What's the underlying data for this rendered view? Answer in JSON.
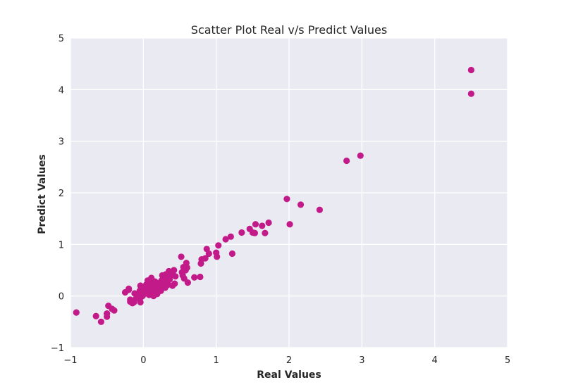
{
  "chart_data": {
    "type": "scatter",
    "title": "Scatter Plot Real v/s Predict Values",
    "xlabel": "Real Values",
    "ylabel": "Predict Values",
    "xlim": [
      -1,
      5
    ],
    "ylim": [
      -1,
      5
    ],
    "xticks": [
      -1,
      0,
      1,
      2,
      3,
      4,
      5
    ],
    "yticks": [
      -1,
      0,
      1,
      2,
      3,
      4,
      5
    ],
    "xtick_labels": [
      "−1",
      "0",
      "1",
      "2",
      "3",
      "4",
      "5"
    ],
    "ytick_labels": [
      "−1",
      "0",
      "1",
      "2",
      "3",
      "4",
      "5"
    ],
    "grid": true,
    "background_color": "#EAEAF2",
    "grid_color": "#ffffff",
    "marker_color": "#C31A8A",
    "points": [
      [
        -0.92,
        -0.32
      ],
      [
        -0.65,
        -0.39
      ],
      [
        -0.58,
        -0.5
      ],
      [
        -0.5,
        -0.4
      ],
      [
        -0.5,
        -0.34
      ],
      [
        -0.48,
        -0.19
      ],
      [
        -0.43,
        -0.25
      ],
      [
        -0.4,
        -0.28
      ],
      [
        -0.25,
        0.07
      ],
      [
        -0.2,
        0.12
      ],
      [
        -0.2,
        0.14
      ],
      [
        -0.18,
        -0.07
      ],
      [
        -0.18,
        -0.11
      ],
      [
        -0.15,
        -0.14
      ],
      [
        -0.13,
        -0.12
      ],
      [
        -0.12,
        0.05
      ],
      [
        -0.1,
        -0.05
      ],
      [
        -0.08,
        0.03
      ],
      [
        -0.05,
        0.1
      ],
      [
        -0.04,
        0.2
      ],
      [
        -0.03,
        -0.02
      ],
      [
        -0.02,
        0.16
      ],
      [
        -0.01,
        0.0
      ],
      [
        -0.04,
        -0.12
      ],
      [
        0.0,
        0.08
      ],
      [
        0.02,
        0.18
      ],
      [
        0.03,
        0.05
      ],
      [
        0.04,
        0.22
      ],
      [
        0.05,
        0.12
      ],
      [
        0.06,
        0.3
      ],
      [
        0.07,
        0.1
      ],
      [
        0.08,
        0.02
      ],
      [
        0.09,
        0.25
      ],
      [
        0.1,
        0.18
      ],
      [
        0.1,
        0.06
      ],
      [
        0.11,
        0.35
      ],
      [
        0.12,
        0.14
      ],
      [
        0.13,
        0.2
      ],
      [
        0.14,
        0.0
      ],
      [
        0.15,
        0.08
      ],
      [
        0.16,
        0.28
      ],
      [
        0.17,
        0.15
      ],
      [
        0.18,
        0.22
      ],
      [
        0.19,
        0.04
      ],
      [
        0.2,
        0.12
      ],
      [
        0.22,
        0.18
      ],
      [
        0.23,
        0.26
      ],
      [
        0.24,
        0.1
      ],
      [
        0.25,
        0.3
      ],
      [
        0.26,
        0.4
      ],
      [
        0.27,
        0.2
      ],
      [
        0.28,
        0.34
      ],
      [
        0.29,
        0.24
      ],
      [
        0.3,
        0.16
      ],
      [
        0.31,
        0.42
      ],
      [
        0.32,
        0.28
      ],
      [
        0.33,
        0.36
      ],
      [
        0.34,
        0.22
      ],
      [
        0.35,
        0.48
      ],
      [
        0.36,
        0.32
      ],
      [
        0.38,
        0.4
      ],
      [
        0.4,
        0.44
      ],
      [
        0.4,
        0.2
      ],
      [
        0.42,
        0.5
      ],
      [
        0.43,
        0.24
      ],
      [
        0.44,
        0.38
      ],
      [
        0.52,
        0.76
      ],
      [
        0.53,
        0.46
      ],
      [
        0.54,
        0.4
      ],
      [
        0.55,
        0.56
      ],
      [
        0.56,
        0.34
      ],
      [
        0.58,
        0.5
      ],
      [
        0.59,
        0.64
      ],
      [
        0.6,
        0.55
      ],
      [
        0.61,
        0.26
      ],
      [
        0.7,
        0.36
      ],
      [
        0.78,
        0.37
      ],
      [
        0.79,
        0.63
      ],
      [
        0.8,
        0.71
      ],
      [
        0.85,
        0.73
      ],
      [
        0.87,
        0.91
      ],
      [
        0.9,
        0.82
      ],
      [
        1.0,
        0.84
      ],
      [
        1.01,
        0.76
      ],
      [
        1.03,
        0.98
      ],
      [
        1.13,
        1.1
      ],
      [
        1.2,
        1.15
      ],
      [
        1.22,
        0.82
      ],
      [
        1.35,
        1.23
      ],
      [
        1.46,
        1.3
      ],
      [
        1.5,
        1.23
      ],
      [
        1.53,
        1.22
      ],
      [
        1.54,
        1.39
      ],
      [
        1.63,
        1.36
      ],
      [
        1.67,
        1.22
      ],
      [
        1.72,
        1.42
      ],
      [
        1.97,
        1.88
      ],
      [
        2.01,
        1.39
      ],
      [
        2.16,
        1.77
      ],
      [
        2.42,
        1.67
      ],
      [
        2.79,
        2.62
      ],
      [
        2.98,
        2.72
      ],
      [
        4.5,
        4.38
      ],
      [
        4.5,
        3.92
      ]
    ]
  }
}
